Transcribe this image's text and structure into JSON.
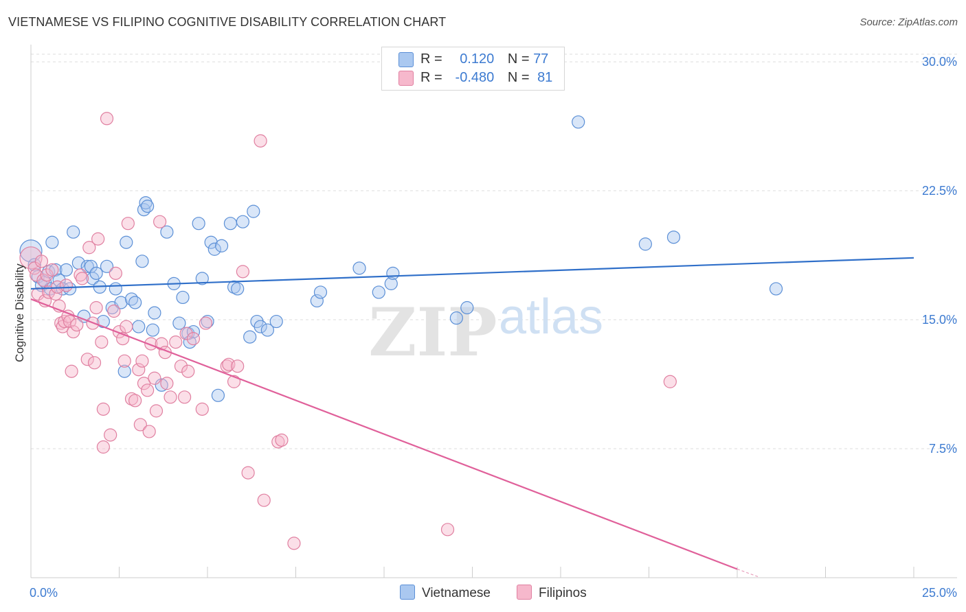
{
  "title": "VIETNAMESE VS FILIPINO COGNITIVE DISABILITY CORRELATION CHART",
  "source": "Source: ZipAtlas.com",
  "watermark": {
    "zip": "ZIP",
    "atlas": "atlas"
  },
  "legend": {
    "rows": [
      {
        "r_label": "R =",
        "r_value": "0.120",
        "n_label": "N =",
        "n_value": "77"
      },
      {
        "r_label": "R =",
        "r_value": "-0.480",
        "n_label": "N =",
        "n_value": "81"
      }
    ]
  },
  "colors": {
    "blue_fill": "#aac8f0",
    "blue_stroke": "#5b8fd6",
    "blue_line": "#2f6fc9",
    "pink_fill": "#f6b8cc",
    "pink_stroke": "#e07fa0",
    "pink_line": "#e0609a",
    "tick_text": "#3d7bd1",
    "grid": "#dddddd"
  },
  "chart_data": {
    "type": "scatter",
    "title": "VIETNAMESE VS FILIPINO COGNITIVE DISABILITY CORRELATION CHART",
    "xlabel": "",
    "ylabel": "Cognitive Disability",
    "xlim": [
      0,
      25
    ],
    "ylim": [
      0,
      31
    ],
    "x_tick_labels": [
      "0.0%",
      "25.0%"
    ],
    "y_ticks": [
      7.5,
      15.0,
      22.5,
      30.0
    ],
    "y_tick_labels": [
      "7.5%",
      "15.0%",
      "22.5%",
      "30.0%"
    ],
    "grid": "horizontal dashed",
    "legend_position": "top-center",
    "series": [
      {
        "name": "Vietnamese",
        "color": "#aac8f0",
        "r": 0.12,
        "n": 77,
        "trend": [
          [
            0,
            16.8
          ],
          [
            25,
            18.6
          ]
        ],
        "points": [
          [
            0.0,
            19.0
          ],
          [
            0.1,
            18.2
          ],
          [
            0.2,
            17.5
          ],
          [
            0.3,
            17.0
          ],
          [
            0.4,
            17.2
          ],
          [
            0.5,
            17.8
          ],
          [
            0.55,
            16.8
          ],
          [
            0.6,
            19.5
          ],
          [
            0.7,
            17.9
          ],
          [
            0.8,
            17.3
          ],
          [
            0.9,
            16.8
          ],
          [
            1.0,
            17.9
          ],
          [
            1.1,
            16.8
          ],
          [
            1.2,
            20.1
          ],
          [
            1.35,
            18.3
          ],
          [
            1.5,
            15.2
          ],
          [
            1.6,
            18.1
          ],
          [
            1.7,
            18.1
          ],
          [
            1.75,
            17.4
          ],
          [
            1.85,
            17.7
          ],
          [
            1.95,
            16.9
          ],
          [
            2.05,
            14.9
          ],
          [
            2.15,
            18.1
          ],
          [
            2.3,
            15.7
          ],
          [
            2.4,
            16.8
          ],
          [
            2.55,
            16.0
          ],
          [
            2.65,
            12.0
          ],
          [
            2.7,
            19.5
          ],
          [
            2.85,
            16.2
          ],
          [
            2.95,
            16.0
          ],
          [
            3.05,
            14.6
          ],
          [
            3.15,
            18.4
          ],
          [
            3.2,
            21.4
          ],
          [
            3.25,
            21.8
          ],
          [
            3.3,
            21.6
          ],
          [
            3.45,
            14.4
          ],
          [
            3.5,
            15.4
          ],
          [
            3.7,
            11.2
          ],
          [
            3.85,
            20.1
          ],
          [
            4.05,
            17.1
          ],
          [
            4.2,
            14.8
          ],
          [
            4.3,
            16.3
          ],
          [
            4.45,
            14.2
          ],
          [
            4.5,
            13.7
          ],
          [
            4.6,
            14.3
          ],
          [
            4.75,
            20.6
          ],
          [
            4.85,
            17.4
          ],
          [
            5.0,
            14.9
          ],
          [
            5.1,
            19.5
          ],
          [
            5.2,
            19.1
          ],
          [
            5.3,
            10.6
          ],
          [
            5.4,
            19.3
          ],
          [
            5.65,
            20.6
          ],
          [
            5.75,
            16.9
          ],
          [
            5.85,
            16.8
          ],
          [
            6.0,
            20.7
          ],
          [
            6.2,
            14.0
          ],
          [
            6.3,
            21.3
          ],
          [
            6.4,
            14.9
          ],
          [
            6.5,
            14.6
          ],
          [
            6.7,
            14.4
          ],
          [
            6.95,
            14.9
          ],
          [
            8.1,
            16.1
          ],
          [
            8.2,
            16.6
          ],
          [
            9.3,
            18.0
          ],
          [
            9.85,
            16.6
          ],
          [
            10.2,
            17.1
          ],
          [
            10.25,
            17.7
          ],
          [
            12.05,
            15.1
          ],
          [
            12.35,
            15.7
          ],
          [
            15.5,
            26.5
          ],
          [
            17.4,
            19.4
          ],
          [
            18.2,
            19.8
          ],
          [
            21.1,
            16.8
          ]
        ]
      },
      {
        "name": "Filipinos",
        "color": "#f6b8cc",
        "r": -0.48,
        "n": 81,
        "trend": [
          [
            0,
            16.2
          ],
          [
            20.0,
            0.5
          ]
        ],
        "points": [
          [
            0.0,
            18.6
          ],
          [
            0.1,
            18.0
          ],
          [
            0.15,
            17.6
          ],
          [
            0.2,
            16.5
          ],
          [
            0.3,
            18.4
          ],
          [
            0.35,
            17.3
          ],
          [
            0.4,
            16.1
          ],
          [
            0.45,
            17.6
          ],
          [
            0.5,
            16.6
          ],
          [
            0.6,
            17.9
          ],
          [
            0.7,
            16.5
          ],
          [
            0.75,
            16.9
          ],
          [
            0.8,
            15.8
          ],
          [
            0.85,
            14.8
          ],
          [
            0.9,
            14.6
          ],
          [
            0.95,
            14.9
          ],
          [
            1.0,
            17.0
          ],
          [
            1.05,
            15.2
          ],
          [
            1.1,
            14.9
          ],
          [
            1.15,
            12.0
          ],
          [
            1.2,
            14.3
          ],
          [
            1.3,
            14.7
          ],
          [
            1.4,
            17.6
          ],
          [
            1.45,
            17.4
          ],
          [
            1.6,
            12.7
          ],
          [
            1.65,
            19.2
          ],
          [
            1.75,
            14.8
          ],
          [
            1.8,
            12.5
          ],
          [
            1.85,
            15.7
          ],
          [
            1.9,
            19.7
          ],
          [
            2.0,
            13.7
          ],
          [
            2.05,
            9.8
          ],
          [
            2.05,
            7.6
          ],
          [
            2.15,
            26.7
          ],
          [
            2.25,
            8.3
          ],
          [
            2.35,
            15.5
          ],
          [
            2.4,
            17.7
          ],
          [
            2.5,
            14.3
          ],
          [
            2.6,
            13.9
          ],
          [
            2.65,
            12.6
          ],
          [
            2.7,
            14.6
          ],
          [
            2.75,
            20.6
          ],
          [
            2.85,
            10.4
          ],
          [
            2.95,
            10.3
          ],
          [
            3.05,
            12.1
          ],
          [
            3.1,
            8.9
          ],
          [
            3.15,
            12.6
          ],
          [
            3.2,
            11.3
          ],
          [
            3.3,
            10.9
          ],
          [
            3.35,
            8.5
          ],
          [
            3.4,
            13.6
          ],
          [
            3.5,
            11.6
          ],
          [
            3.55,
            9.7
          ],
          [
            3.65,
            20.7
          ],
          [
            3.7,
            13.6
          ],
          [
            3.8,
            13.1
          ],
          [
            3.85,
            11.3
          ],
          [
            3.95,
            10.5
          ],
          [
            4.1,
            13.7
          ],
          [
            4.25,
            12.3
          ],
          [
            4.35,
            10.5
          ],
          [
            4.4,
            14.2
          ],
          [
            4.45,
            12.0
          ],
          [
            4.6,
            13.9
          ],
          [
            4.85,
            9.8
          ],
          [
            4.95,
            14.8
          ],
          [
            5.55,
            12.3
          ],
          [
            5.6,
            12.4
          ],
          [
            5.75,
            11.4
          ],
          [
            5.85,
            12.3
          ],
          [
            6.0,
            17.8
          ],
          [
            6.15,
            6.1
          ],
          [
            6.5,
            25.4
          ],
          [
            6.6,
            4.5
          ],
          [
            7.0,
            7.9
          ],
          [
            7.1,
            8.0
          ],
          [
            7.45,
            2.0
          ],
          [
            11.8,
            2.8
          ],
          [
            18.1,
            11.4
          ]
        ]
      }
    ]
  },
  "bottom_legend": [
    {
      "label": "Vietnamese"
    },
    {
      "label": "Filipinos"
    }
  ]
}
